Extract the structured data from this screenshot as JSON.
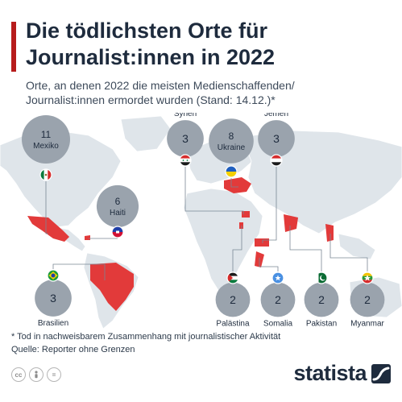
{
  "header": {
    "title_line1": "Die tödlichsten Orte für",
    "title_line2": "Journalist:innen in 2022",
    "subtitle_line1": "Orte, an denen 2022 die meisten Medienschaffenden/",
    "subtitle_line2": "Journalist:innen ermordet wurden (Stand: 14.12.)*"
  },
  "chart_data": {
    "type": "map",
    "title": "Die tödlichsten Orte für Journalist:innen in 2022",
    "subtitle": "Orte, an denen 2022 die meisten Medienschaffenden/Journalist:innen ermordet wurden (Stand: 14.12.)*",
    "categories": [
      "Mexiko",
      "Ukraine",
      "Haiti",
      "Syrien",
      "Jemen",
      "Brasilien",
      "Palästina",
      "Somalia",
      "Pakistan",
      "Myanmar"
    ],
    "values": [
      11,
      8,
      6,
      3,
      3,
      3,
      2,
      2,
      2,
      2
    ],
    "bubble_color": "#9aa3ad",
    "highlight_color": "#e23a3a",
    "map_color": "#dfe5ea"
  },
  "footer": {
    "footnote": "* Tod in nachweisbarem Zusammenhang mit journalistischer Aktivität",
    "source": "Quelle: Reporter ohne Grenzen",
    "brand": "statista",
    "license_icons": [
      "cc-icon",
      "person-icon",
      "equals-icon"
    ]
  }
}
